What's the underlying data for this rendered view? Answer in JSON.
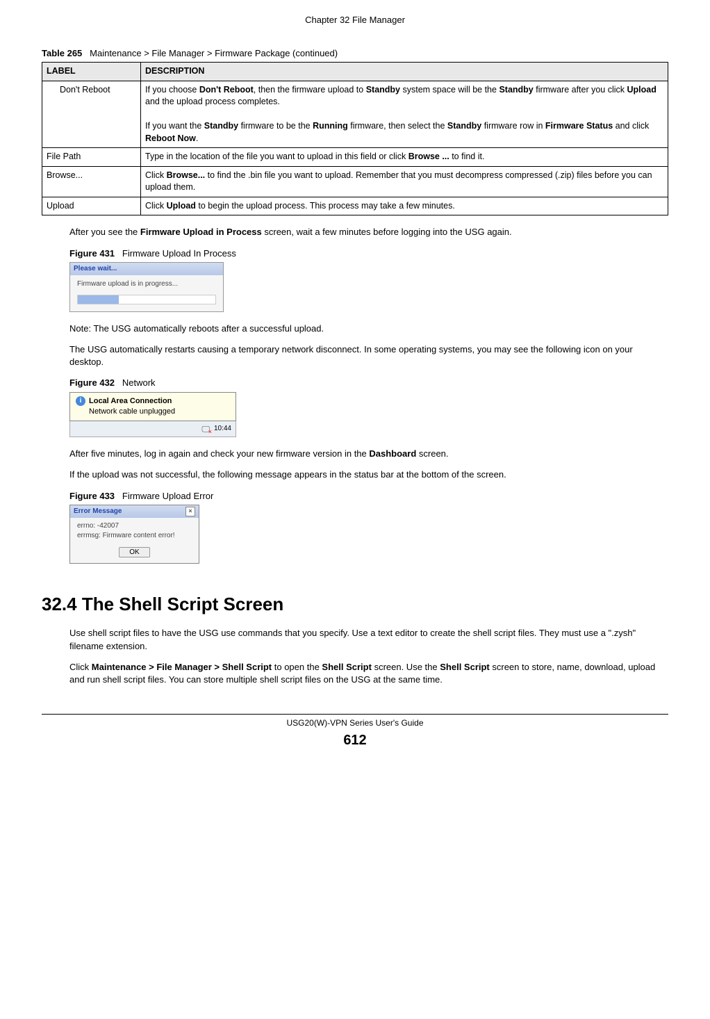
{
  "chapterHeader": "Chapter 32 File Manager",
  "tableCaptionNum": "Table 265",
  "tableCaptionText": "Maintenance > File Manager > Firmware Package (continued)",
  "table": {
    "headers": [
      "LABEL",
      "DESCRIPTION"
    ],
    "rows": [
      {
        "label": "Don't Reboot",
        "indent": true,
        "descHtml": "If you choose <b>Don't Reboot</b>, then the firmware upload to <b>Standby</b> system space will be the <b>Standby</b> firmware after you click <b>Upload</b> and the upload process completes.<br><br>If you want the <b>Standby</b> firmware to be the <b>Running</b> firmware, then select the <b>Standby</b> firmware row in <b>Firmware Status</b> and click <b>Reboot Now</b>."
      },
      {
        "label": "File Path",
        "indent": false,
        "descHtml": "Type in the location of the file you want to upload in this field or click <b>Browse ...</b> to find it."
      },
      {
        "label": "Browse...",
        "indent": false,
        "descHtml": "Click <b>Browse...</b> to find the .bin file you want to upload. Remember that you must decompress compressed (.zip) files before you can upload them."
      },
      {
        "label": "Upload",
        "indent": false,
        "descHtml": "Click <b>Upload</b> to begin the upload process. This process may take a few minutes."
      }
    ]
  },
  "para1Html": "After you see the <b>Firmware Upload in Process</b> screen, wait a few minutes before logging into the USG again.",
  "fig431Num": "Figure 431",
  "fig431Text": "Firmware Upload In Process",
  "fig431": {
    "title": "Please wait...",
    "msg": "Firmware upload is in progress..."
  },
  "noteText": "Note: The USG automatically reboots after a successful upload.",
  "para2": "The USG automatically restarts causing a temporary network disconnect. In some operating systems, you may see the following icon on your desktop.",
  "fig432Num": "Figure 432",
  "fig432Text": "Network",
  "fig432": {
    "title": "Local Area Connection",
    "sub": "Network cable unplugged",
    "time": "10:44"
  },
  "para3Html": "After five minutes, log in again and check your new firmware version in the <b>Dashboard</b> screen.",
  "para4": "If the upload was not successful, the following message appears in the status bar at the bottom of the screen.",
  "fig433Num": "Figure 433",
  "fig433Text": "Firmware Upload Error",
  "fig433": {
    "title": "Error Message",
    "line1": "errno: -42007",
    "line2": "errmsg: Firmware content error!",
    "ok": "OK"
  },
  "sectionHeading": "32.4  The Shell Script Screen",
  "para5": "Use shell script files to have the USG use commands that you specify. Use a text editor to create the shell script files. They must use a \".zysh\" filename extension.",
  "para6Html": "Click <b>Maintenance > File Manager > Shell Script</b> to open the <b>Shell Script</b> screen. Use the <b>Shell Script</b> screen to store, name, download, upload and run shell script files. You can store multiple shell script files on the USG at the same time.",
  "footerGuide": "USG20(W)-VPN Series User's Guide",
  "pageNumber": "612"
}
